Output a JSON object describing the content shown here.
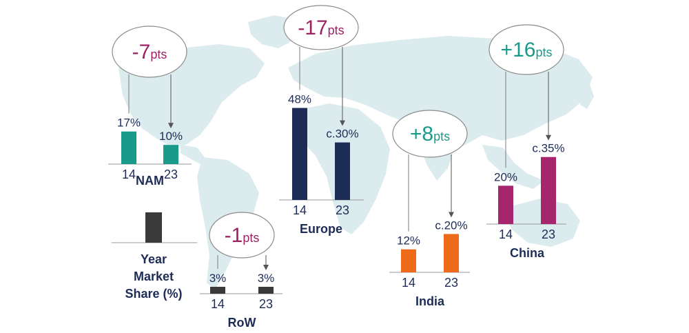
{
  "chart_data": {
    "type": "bar",
    "title": "",
    "categories": [
      "14",
      "23"
    ],
    "legend": {
      "lines": [
        "Year",
        "Market",
        "Share (%)"
      ],
      "swatch_color": "#3a3a3a"
    },
    "regions": [
      {
        "name": "NAM",
        "values": [
          17,
          10
        ],
        "labels": [
          "17%",
          "10%"
        ],
        "categories": [
          "14",
          "23"
        ],
        "color": "#1a9a8a",
        "change": {
          "value": "-7",
          "unit": "pts",
          "color": "#9c2263"
        }
      },
      {
        "name": "Europe",
        "values": [
          48,
          30
        ],
        "labels": [
          "48%",
          "c.30%"
        ],
        "categories": [
          "14",
          "23"
        ],
        "color": "#1d2b57",
        "change": {
          "value": "-17",
          "unit": "pts",
          "color": "#9c2263"
        }
      },
      {
        "name": "India",
        "values": [
          12,
          20
        ],
        "labels": [
          "12%",
          "c.20%"
        ],
        "categories": [
          "14",
          "23"
        ],
        "color": "#ec6a1a",
        "change": {
          "value": "+8",
          "unit": "pts",
          "color": "#1a9a8a"
        }
      },
      {
        "name": "China",
        "values": [
          20,
          35
        ],
        "labels": [
          "20%",
          "c.35%"
        ],
        "categories": [
          "14",
          "23"
        ],
        "color": "#a6266e",
        "change": {
          "value": "+16",
          "unit": "pts",
          "color": "#1a9a8a"
        }
      },
      {
        "name": "RoW",
        "values": [
          3,
          3
        ],
        "labels": [
          "3%",
          "3%"
        ],
        "categories": [
          "14",
          "23"
        ],
        "color": "#3a3a3a",
        "change": {
          "value": "-1",
          "unit": "pts",
          "color": "#9c2263"
        }
      }
    ],
    "colors": {
      "text": "#1d2b57",
      "map": "#dcebee",
      "axis": "#9a9a9a",
      "bubble_border": "#8a8a8a"
    }
  }
}
